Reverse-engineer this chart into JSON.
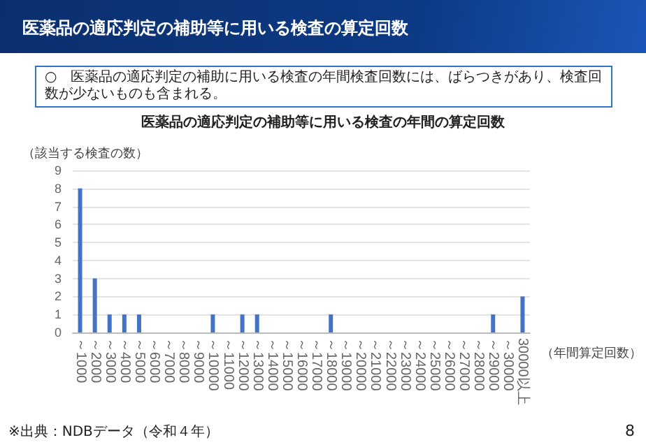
{
  "chart_data": {
    "type": "bar",
    "title": "医薬品の適応判定の補助等に用いる検査の算定回数",
    "subtitle": "○　医薬品の適応判定の補助に用いる検査の年間検査回数には、ばらつきがあり、検査回数が少ないものも含まれる。",
    "annotations": [
      "医薬品の適応判定の補助等に用いる検査の年間の算定回数",
      "※出典：NDBデータ（令和４年）",
      "8"
    ],
    "xlabel": "（年間算定回数）",
    "ylabel": "（該当する検査の数）",
    "categories": [
      "～1000",
      "～2000",
      "～3000",
      "～4000",
      "～5000",
      "～6000",
      "～7000",
      "～8000",
      "～9000",
      "～10000",
      "～11000",
      "～12000",
      "～13000",
      "～14000",
      "～15000",
      "～16000",
      "～17000",
      "～18000",
      "～19000",
      "～20000",
      "～21000",
      "～22000",
      "～23000",
      "～24000",
      "～25000",
      "～26000",
      "～27000",
      "～28000",
      "～29000",
      "～30000",
      "30000以上"
    ],
    "values": [
      8,
      3,
      1,
      1,
      1,
      0,
      0,
      0,
      0,
      1,
      0,
      1,
      1,
      0,
      0,
      0,
      0,
      1,
      0,
      0,
      0,
      0,
      0,
      0,
      0,
      0,
      0,
      0,
      1,
      0,
      2
    ],
    "color": "#4472c4",
    "ylim": [
      0,
      9
    ],
    "yticks": [
      0,
      1,
      2,
      3,
      4,
      5,
      6,
      7,
      8,
      9
    ],
    "grid": "y"
  }
}
